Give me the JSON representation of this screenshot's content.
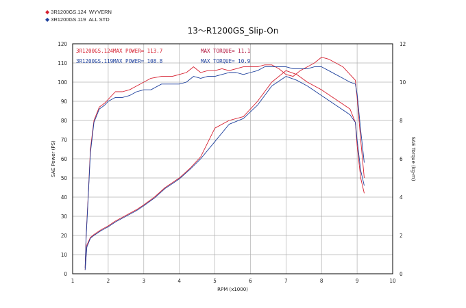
{
  "legend": [
    {
      "mark": "◆",
      "name": "3R1200GS.124",
      "desc": "WYVERN",
      "color": "#d62030"
    },
    {
      "mark": "◆",
      "name": "3R1200GS.119",
      "desc": "ALL STD",
      "color": "#1c3f9c"
    }
  ],
  "chart_data": {
    "type": "line",
    "title": "13～R1200GS_Slip-On",
    "xlabel": "RPM (x1000)",
    "ylabel": "SAE Power (PS)",
    "y2label": "SAE Torque (kg-m)",
    "xlim": [
      1,
      10
    ],
    "ylim": [
      0,
      120
    ],
    "y2lim": [
      0,
      12
    ],
    "x_ticks": [
      1,
      2,
      3,
      4,
      5,
      6,
      7,
      8,
      9,
      10
    ],
    "y_ticks": [
      0,
      10,
      20,
      30,
      40,
      50,
      60,
      70,
      80,
      90,
      100,
      110,
      120
    ],
    "y2_ticks": [
      0,
      2,
      4,
      6,
      8,
      10,
      12
    ],
    "grid": true,
    "annotations": [
      {
        "text": "3R1200GS.124",
        "color": "#d62030",
        "row": 0,
        "col": 0
      },
      {
        "text": "MAX POWER= 113.7",
        "color": "#d62030",
        "row": 0,
        "col": 1
      },
      {
        "text": "MAX TORQUE= 11.1",
        "color": "#b0103a",
        "row": 0,
        "col": 2
      },
      {
        "text": "3R1200GS.119",
        "color": "#1c3f9c",
        "row": 1,
        "col": 0
      },
      {
        "text": "MAX POWER= 108.8",
        "color": "#1c3f9c",
        "row": 1,
        "col": 1
      },
      {
        "text": "MAX TORQUE= 10.9",
        "color": "#1c3f9c",
        "row": 1,
        "col": 2
      }
    ],
    "series": [
      {
        "name": "3R1200GS.124 power",
        "axis": "left",
        "color": "#d62030",
        "x": [
          1.35,
          1.38,
          1.45,
          1.5,
          1.6,
          1.75,
          1.9,
          2.0,
          2.2,
          2.4,
          2.6,
          2.8,
          3.0,
          3.2,
          3.5,
          3.8,
          4.0,
          4.2,
          4.4,
          4.6,
          4.8,
          5.0,
          5.2,
          5.4,
          5.6,
          5.8,
          6.0,
          6.2,
          6.4,
          6.6,
          6.8,
          7.0,
          7.2,
          7.4,
          7.6,
          7.8,
          8.0,
          8.2,
          8.4,
          8.6,
          8.8,
          8.95,
          9.0,
          9.1,
          9.2
        ],
        "y": [
          3,
          20,
          45,
          65,
          80,
          87,
          89,
          91,
          95,
          95,
          96,
          98,
          100,
          102,
          103,
          103,
          104,
          105,
          108,
          105,
          106,
          106,
          107,
          106,
          107,
          108,
          108,
          108,
          109,
          109,
          107,
          104,
          103,
          106,
          108,
          110,
          113,
          112,
          110,
          108,
          104,
          101,
          92,
          70,
          50
        ]
      },
      {
        "name": "3R1200GS.119 power",
        "axis": "left",
        "color": "#1c3f9c",
        "x": [
          1.35,
          1.38,
          1.45,
          1.5,
          1.6,
          1.75,
          1.9,
          2.0,
          2.2,
          2.4,
          2.6,
          2.8,
          3.0,
          3.2,
          3.5,
          3.8,
          4.0,
          4.2,
          4.4,
          4.6,
          4.8,
          5.0,
          5.2,
          5.4,
          5.6,
          5.8,
          6.0,
          6.2,
          6.4,
          6.6,
          6.8,
          7.0,
          7.2,
          7.4,
          7.6,
          7.8,
          8.0,
          8.2,
          8.4,
          8.6,
          8.8,
          8.95,
          9.0,
          9.1,
          9.2
        ],
        "y": [
          3,
          19,
          44,
          63,
          79,
          86,
          88,
          90,
          92,
          92,
          93,
          95,
          96,
          96,
          99,
          99,
          99,
          100,
          103,
          102,
          103,
          103,
          104,
          105,
          105,
          104,
          105,
          106,
          108,
          108,
          108,
          108,
          107,
          107,
          107,
          108,
          108,
          106,
          104,
          102,
          100,
          99,
          94,
          75,
          58
        ]
      },
      {
        "name": "3R1200GS.124 torque",
        "axis": "right",
        "color": "#d62030",
        "x": [
          1.35,
          1.4,
          1.5,
          1.6,
          1.8,
          2.0,
          2.2,
          2.5,
          2.8,
          3.0,
          3.3,
          3.6,
          4.0,
          4.3,
          4.6,
          5.0,
          5.4,
          5.8,
          6.2,
          6.6,
          7.0,
          7.3,
          7.6,
          8.0,
          8.4,
          8.8,
          8.95,
          9.0,
          9.1,
          9.2
        ],
        "y": [
          0.2,
          1.5,
          1.9,
          2.05,
          2.3,
          2.5,
          2.75,
          3.05,
          3.35,
          3.6,
          4.0,
          4.5,
          5.0,
          5.5,
          6.1,
          7.6,
          8.0,
          8.2,
          9.0,
          10.0,
          10.6,
          10.4,
          10.0,
          9.6,
          9.1,
          8.6,
          7.9,
          6.7,
          5.0,
          4.2
        ]
      },
      {
        "name": "3R1200GS.119 torque",
        "axis": "right",
        "color": "#1c3f9c",
        "x": [
          1.35,
          1.4,
          1.5,
          1.6,
          1.8,
          2.0,
          2.2,
          2.5,
          2.8,
          3.0,
          3.3,
          3.6,
          4.0,
          4.3,
          4.6,
          5.0,
          5.4,
          5.8,
          6.2,
          6.6,
          7.0,
          7.3,
          7.6,
          8.0,
          8.4,
          8.8,
          8.95,
          9.0,
          9.1,
          9.2
        ],
        "y": [
          0.2,
          1.4,
          1.85,
          2.0,
          2.25,
          2.45,
          2.7,
          3.0,
          3.3,
          3.55,
          3.95,
          4.45,
          4.95,
          5.45,
          6.0,
          6.9,
          7.8,
          8.1,
          8.8,
          9.8,
          10.3,
          10.1,
          9.8,
          9.3,
          8.8,
          8.3,
          7.9,
          7.0,
          5.4,
          4.6
        ]
      }
    ]
  }
}
